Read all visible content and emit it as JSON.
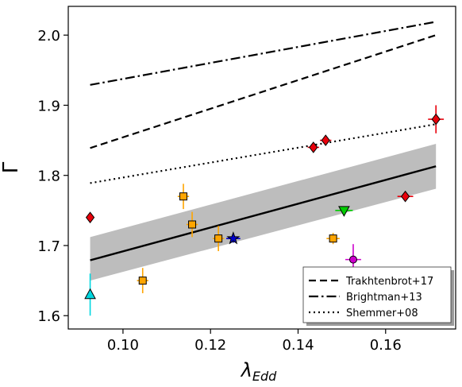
{
  "chart_data": {
    "type": "scatter",
    "xlabel": "λ",
    "xlabel_sub": "Edd",
    "ylabel": "Γ",
    "xlim": [
      0.0875,
      0.176
    ],
    "ylim": [
      1.581,
      2.041
    ],
    "x_ticks": [
      0.1,
      0.12,
      0.14,
      0.16
    ],
    "x_tick_labels": [
      "0.10",
      "0.12",
      "0.14",
      "0.16"
    ],
    "y_ticks": [
      1.6,
      1.7,
      1.8,
      1.9,
      2.0
    ],
    "y_tick_labels": [
      "1.6",
      "1.7",
      "1.8",
      "1.9",
      "2.0"
    ],
    "grid": false,
    "legend_position": "lower-right",
    "lines": [
      {
        "name": "Trakhtenbrot+17",
        "style": "dashed",
        "x": [
          0.0925,
          0.1715
        ],
        "y": [
          1.839,
          2.0
        ]
      },
      {
        "name": "Brightman+13",
        "style": "dashdot",
        "x": [
          0.0925,
          0.1715
        ],
        "y": [
          1.929,
          2.019
        ]
      },
      {
        "name": "Shemmer+08",
        "style": "dotted",
        "x": [
          0.0925,
          0.1715
        ],
        "y": [
          1.789,
          1.873
        ]
      }
    ],
    "fit": {
      "x": [
        0.0925,
        0.1715
      ],
      "y": [
        1.679,
        1.813
      ],
      "band_lower": [
        1.65,
        1.781
      ],
      "band_upper": [
        1.712,
        1.845
      ],
      "color": "#000000",
      "band_color": "#bdbdbd"
    },
    "points": [
      {
        "x": 0.0925,
        "y": 1.74,
        "xerr": 0.0,
        "yerr": 0.0,
        "marker": "diamond",
        "color": "#e8000b",
        "ecolor": "#e8000b"
      },
      {
        "x": 0.0925,
        "y": 1.63,
        "xerr": 0.0,
        "yerr": 0.03,
        "marker": "triangle-up",
        "color": "#00d7e0",
        "ecolor": "#00d7e0"
      },
      {
        "x": 0.1045,
        "y": 1.65,
        "xerr": 0.0013,
        "yerr": 0.018,
        "marker": "square",
        "color": "#ffa500",
        "ecolor": "#ffa500"
      },
      {
        "x": 0.1138,
        "y": 1.77,
        "xerr": 0.0013,
        "yerr": 0.018,
        "marker": "square",
        "color": "#ffa500",
        "ecolor": "#ffa500"
      },
      {
        "x": 0.1158,
        "y": 1.73,
        "xerr": 0.0013,
        "yerr": 0.018,
        "marker": "square",
        "color": "#ffa500",
        "ecolor": "#ffa500"
      },
      {
        "x": 0.1218,
        "y": 1.71,
        "xerr": 0.0013,
        "yerr": 0.018,
        "marker": "square",
        "color": "#ffa500",
        "ecolor": "#ffa500"
      },
      {
        "x": 0.1252,
        "y": 1.71,
        "xerr": 0.0016,
        "yerr": 0.006,
        "marker": "star",
        "color": "#0000cc",
        "ecolor": "#0000cc"
      },
      {
        "x": 0.1435,
        "y": 1.84,
        "xerr": 0.0013,
        "yerr": 0.006,
        "marker": "diamond",
        "color": "#e8000b",
        "ecolor": "#e8000b"
      },
      {
        "x": 0.1463,
        "y": 1.85,
        "xerr": 0.0013,
        "yerr": 0.006,
        "marker": "diamond",
        "color": "#e8000b",
        "ecolor": "#e8000b"
      },
      {
        "x": 0.148,
        "y": 1.71,
        "xerr": 0.0015,
        "yerr": 0.008,
        "marker": "square",
        "color": "#ffa500",
        "ecolor": "#ffa500"
      },
      {
        "x": 0.1505,
        "y": 1.75,
        "xerr": 0.002,
        "yerr": 0.004,
        "marker": "triangle-down",
        "color": "#00cc00",
        "ecolor": "#00cc00"
      },
      {
        "x": 0.1526,
        "y": 1.68,
        "xerr": 0.0018,
        "yerr": 0.022,
        "marker": "circle",
        "color": "#cc00cc",
        "ecolor": "#cc00cc"
      },
      {
        "x": 0.1645,
        "y": 1.77,
        "xerr": 0.0018,
        "yerr": 0.006,
        "marker": "diamond",
        "color": "#e8000b",
        "ecolor": "#e8000b"
      },
      {
        "x": 0.1715,
        "y": 1.88,
        "xerr": 0.0018,
        "yerr": 0.02,
        "marker": "diamond",
        "color": "#e8000b",
        "ecolor": "#e8000b"
      }
    ]
  }
}
